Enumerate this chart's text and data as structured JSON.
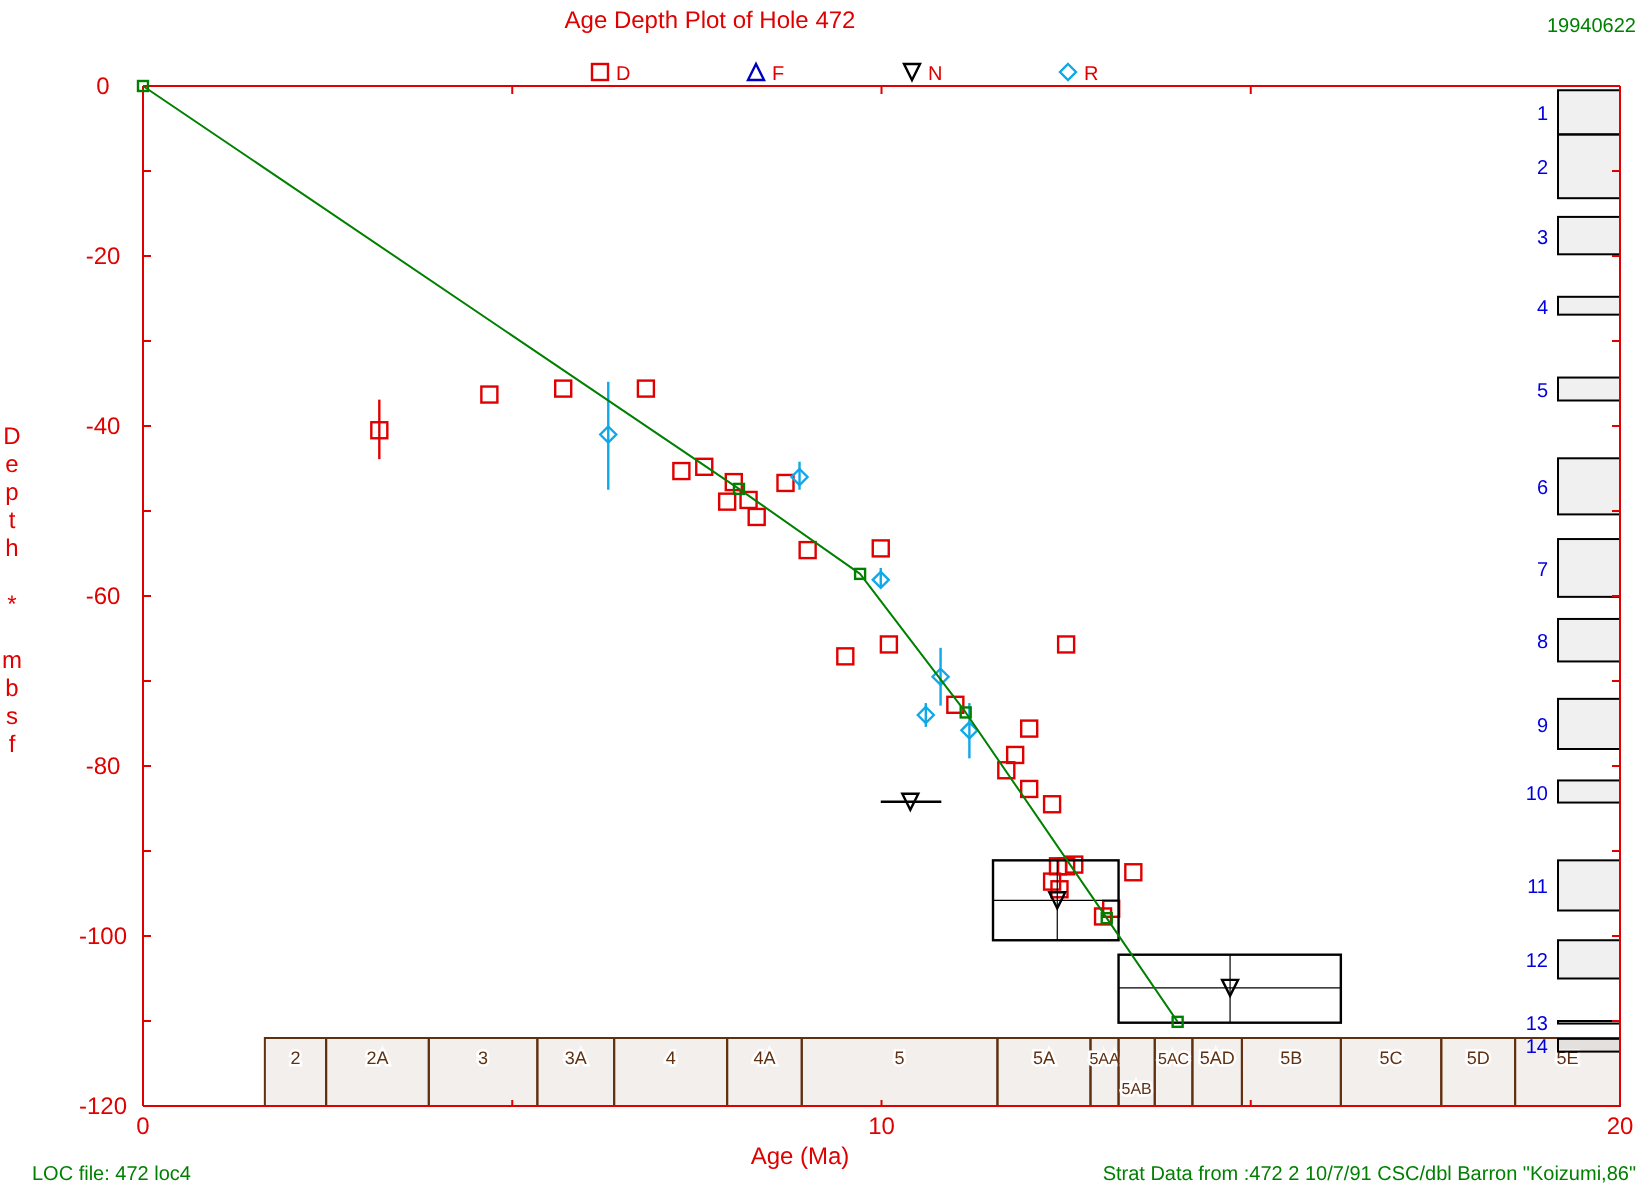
{
  "chart_data": {
    "type": "scatter",
    "title": "Age Depth Plot of Hole 472",
    "xlabel": "Age (Ma)",
    "ylabel": "Depth * mbsf",
    "annotations": [
      "19940622",
      "LOC file: 472 loc4",
      "Strat Data from :472 2  10/7/91 CSC/dbl Barron \"Koizumi,86\""
    ],
    "xlim": [
      0,
      20
    ],
    "ylim": [
      -120,
      0
    ],
    "xticks": [
      0,
      {
        "value": 5,
        "label": null
      },
      10,
      {
        "value": 15,
        "label": null
      },
      20
    ],
    "yticks": [
      0,
      {
        "value": -10,
        "label": null
      },
      -20,
      {
        "value": -30,
        "label": null
      },
      -40,
      {
        "value": -50,
        "label": null
      },
      -60,
      {
        "value": -70,
        "label": null
      },
      -80,
      {
        "value": -90,
        "label": null
      },
      -100,
      {
        "value": -110,
        "label": null
      },
      -120
    ],
    "legend": "top",
    "series": [
      {
        "name": "D",
        "color": "#e00000",
        "marker": "square",
        "x": [
          3.2,
          4.69,
          5.69,
          6.81,
          7.29,
          7.6,
          8.0,
          7.91,
          8.2,
          8.31,
          8.7,
          9.0,
          9.99,
          9.51,
          10.1,
          12.5,
          11.0,
          12.0,
          11.81,
          11.69,
          12.0,
          12.31,
          12.39,
          12.5,
          12.61,
          12.31,
          12.41,
          13.41,
          13.11,
          13.0
        ],
        "values": [
          -40.5,
          -36.3,
          -35.6,
          -35.6,
          -45.3,
          -44.8,
          -46.6,
          -48.9,
          -48.7,
          -50.7,
          -46.7,
          -54.6,
          -54.4,
          -67.1,
          -65.7,
          -65.7,
          -72.8,
          -75.6,
          -78.7,
          -80.5,
          -82.7,
          -84.5,
          -91.8,
          -91.8,
          -91.6,
          -93.6,
          -94.5,
          -92.5,
          -96.8,
          -97.7
        ],
        "errors": [
          [
            -43.9,
            -36.9
          ],
          null,
          null,
          null,
          null,
          null,
          null,
          null,
          null,
          null,
          null,
          null,
          null,
          null,
          null,
          null,
          null,
          null,
          null,
          null,
          null,
          null,
          null,
          null,
          null,
          null,
          null,
          null,
          null,
          null
        ]
      },
      {
        "name": "F",
        "color": "#0000c0",
        "marker": "triangle"
      },
      {
        "name": "N",
        "color": "#000000",
        "marker": "triangle-down",
        "x": [
          10.39,
          12.38,
          14.72
        ],
        "values": [
          -84.2,
          -95.8,
          -106.1
        ],
        "xerrors": [
          [
            9.99,
            10.81
          ],
          [
            11.51,
            13.21
          ],
          [
            13.21,
            16.22
          ]
        ],
        "errors": [
          null,
          [
            -100.5,
            -91.1
          ],
          [
            -110.2,
            -102.2
          ]
        ]
      },
      {
        "name": "R",
        "color": "#10a8e8",
        "marker": "diamond",
        "x": [
          6.3,
          8.89,
          9.99,
          10.8,
          10.6,
          11.19
        ],
        "values": [
          -41.0,
          -46.0,
          -58.1,
          -69.5,
          -74.0,
          -75.8
        ],
        "errors": [
          [
            -47.5,
            -34.8
          ],
          [
            -47.5,
            -44.2
          ],
          [
            -59.0,
            -56.7
          ],
          [
            -72.9,
            -66.1
          ],
          [
            -75.4,
            -72.6
          ],
          [
            -79.1,
            -72.6
          ]
        ]
      },
      {
        "type": "line",
        "color": "#008000",
        "marker": "square",
        "x": [
          0,
          8.07,
          9.71,
          11.14,
          13.05,
          14.01
        ],
        "values": [
          0,
          -47.4,
          -57.4,
          -73.7,
          -97.9,
          -110.1
        ]
      }
    ],
    "bands": [
      {
        "axis": "x",
        "from": 1.65,
        "to": 2.48,
        "label": "2",
        "color": "#603010"
      },
      {
        "axis": "x",
        "from": 2.48,
        "to": 3.87,
        "label": "2A",
        "color": "#603010"
      },
      {
        "axis": "x",
        "from": 3.87,
        "to": 5.34,
        "label": "3",
        "color": "#603010"
      },
      {
        "axis": "x",
        "from": 5.34,
        "to": 6.38,
        "label": "3A",
        "color": "#603010"
      },
      {
        "axis": "x",
        "from": 6.38,
        "to": 7.91,
        "label": "4",
        "color": "#603010"
      },
      {
        "axis": "x",
        "from": 7.91,
        "to": 8.92,
        "label": "4A",
        "color": "#603010"
      },
      {
        "axis": "x",
        "from": 8.92,
        "to": 11.57,
        "label": "5",
        "color": "#603010"
      },
      {
        "axis": "x",
        "from": 11.57,
        "to": 12.83,
        "label": "5A",
        "color": "#603010"
      },
      {
        "axis": "x",
        "from": 12.83,
        "to": 13.21,
        "label": "5AA",
        "color": "#603010"
      },
      {
        "axis": "x",
        "from": 13.21,
        "to": 13.7,
        "label": "5AB",
        "color": "#603010"
      },
      {
        "axis": "x",
        "from": 13.7,
        "to": 14.21,
        "label": "5AC",
        "color": "#603010"
      },
      {
        "axis": "x",
        "from": 14.21,
        "to": 14.88,
        "label": "5AD",
        "color": "#603010"
      },
      {
        "axis": "x",
        "from": 14.88,
        "to": 16.22,
        "label": "5B",
        "color": "#603010"
      },
      {
        "axis": "x",
        "from": 16.22,
        "to": 17.58,
        "label": "5C",
        "color": "#603010"
      },
      {
        "axis": "x",
        "from": 17.58,
        "to": 18.58,
        "label": "5D",
        "color": "#603010"
      },
      {
        "axis": "x",
        "from": 18.58,
        "to": 20,
        "label": "5E",
        "color": "#603010"
      },
      {
        "axis": "y",
        "from": -0.5,
        "to": -5.7,
        "label": "1",
        "color": "#000000"
      },
      {
        "axis": "y",
        "from": -5.7,
        "to": -13.2,
        "label": "2",
        "color": "#000000"
      },
      {
        "axis": "y",
        "from": -15.4,
        "to": -19.8,
        "label": "3",
        "color": "#000000"
      },
      {
        "axis": "y",
        "from": -24.8,
        "to": -26.9,
        "label": "4",
        "color": "#000000"
      },
      {
        "axis": "y",
        "from": -34.3,
        "to": -37.0,
        "label": "5",
        "color": "#000000"
      },
      {
        "axis": "y",
        "from": -43.8,
        "to": -50.4,
        "label": "6",
        "color": "#000000"
      },
      {
        "axis": "y",
        "from": -53.3,
        "to": -60.1,
        "label": "7",
        "color": "#000000"
      },
      {
        "axis": "y",
        "from": -62.7,
        "to": -67.7,
        "label": "8",
        "color": "#000000"
      },
      {
        "axis": "y",
        "from": -72.1,
        "to": -78.0,
        "label": "9",
        "color": "#000000"
      },
      {
        "axis": "y",
        "from": -81.7,
        "to": -84.3,
        "label": "10",
        "color": "#000000"
      },
      {
        "axis": "y",
        "from": -91.1,
        "to": -97.0,
        "label": "11",
        "color": "#000000"
      },
      {
        "axis": "y",
        "from": -100.5,
        "to": -105.0,
        "label": "12",
        "color": "#000000"
      },
      {
        "axis": "y",
        "from": -110.0,
        "to": -110.3,
        "label": "13",
        "color": "#000000"
      },
      {
        "axis": "y",
        "from": -112.1,
        "to": -113.6,
        "label": "14",
        "color": "#000000"
      }
    ]
  }
}
